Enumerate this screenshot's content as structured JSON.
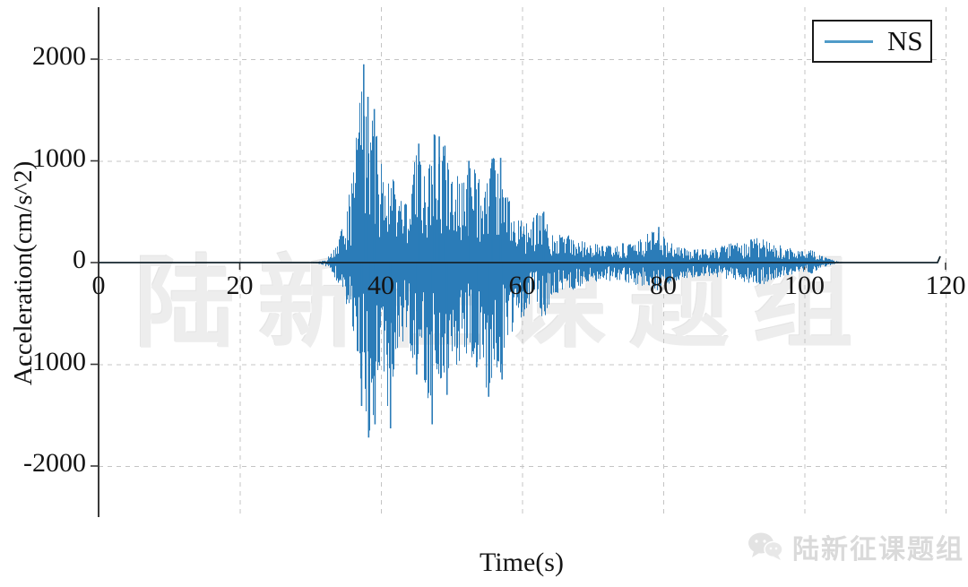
{
  "figure": {
    "watermark_center": "陆新征课题组",
    "watermark_badge": "陆新征课题组"
  },
  "chart_data": {
    "type": "line",
    "title": "",
    "xlabel": "Time(s)",
    "ylabel": "Acceleration(cm/s^2)",
    "series_name": "NS",
    "legend_position": "upper right",
    "grid": "dashed",
    "xlim": [
      0,
      120
    ],
    "ylim": [
      -2500,
      2500
    ],
    "xticks": [
      0,
      20,
      40,
      60,
      80,
      100,
      120
    ],
    "yticks": [
      2000,
      1000,
      0,
      -1000,
      -2000
    ],
    "line_color": "#2b7cb8",
    "legend_line_color": "#4f9bc8",
    "baseline_color": "#16262e",
    "grid_color": "#c4c4c4",
    "spine_color": "#3a3a3a",
    "signal_start_s": 31,
    "signal_end_s": 105,
    "record_end_s": 119.4,
    "peak_acceleration": 1950,
    "min_acceleration": -1720,
    "envelope_t_up_dn": [
      [
        0,
        2,
        -2
      ],
      [
        28,
        2,
        -2
      ],
      [
        30,
        5,
        -5
      ],
      [
        31,
        10,
        -10
      ],
      [
        32,
        30,
        -30
      ],
      [
        33,
        110,
        -100
      ],
      [
        34,
        240,
        -220
      ],
      [
        35,
        550,
        -430
      ],
      [
        36,
        900,
        -700
      ],
      [
        37,
        1700,
        -1300
      ],
      [
        37.5,
        1950,
        -1410
      ],
      [
        38,
        1500,
        -1720
      ],
      [
        39,
        1510,
        -1590
      ],
      [
        40,
        1000,
        -1000
      ],
      [
        41,
        900,
        -1630
      ],
      [
        42,
        800,
        -900
      ],
      [
        43,
        560,
        -800
      ],
      [
        44,
        620,
        -850
      ],
      [
        45,
        1170,
        -1100
      ],
      [
        46,
        1000,
        -1200
      ],
      [
        47,
        1100,
        -1590
      ],
      [
        47.5,
        1260,
        -1300
      ],
      [
        48,
        1240,
        -1200
      ],
      [
        49,
        1150,
        -1150
      ],
      [
        50,
        900,
        -950
      ],
      [
        51,
        850,
        -1050
      ],
      [
        52,
        1000,
        -900
      ],
      [
        53,
        950,
        -1030
      ],
      [
        54,
        800,
        -950
      ],
      [
        55,
        1020,
        -1320
      ],
      [
        56,
        1030,
        -1100
      ],
      [
        57,
        800,
        -1150
      ],
      [
        58,
        650,
        -800
      ],
      [
        59,
        500,
        -600
      ],
      [
        60,
        450,
        -550
      ],
      [
        61,
        350,
        -450
      ],
      [
        62,
        510,
        -400
      ],
      [
        63,
        500,
        -600
      ],
      [
        64,
        300,
        -350
      ],
      [
        65,
        280,
        -300
      ],
      [
        66,
        300,
        -250
      ],
      [
        67,
        250,
        -280
      ],
      [
        68,
        220,
        -250
      ],
      [
        69,
        200,
        -220
      ],
      [
        70,
        180,
        -200
      ],
      [
        71,
        200,
        -180
      ],
      [
        72,
        170,
        -190
      ],
      [
        73,
        160,
        -170
      ],
      [
        74,
        200,
        -180
      ],
      [
        75,
        180,
        -200
      ],
      [
        76,
        200,
        -220
      ],
      [
        77,
        250,
        -230
      ],
      [
        78,
        300,
        -250
      ],
      [
        79,
        350,
        -280
      ],
      [
        80,
        280,
        -250
      ],
      [
        81,
        200,
        -200
      ],
      [
        82,
        160,
        -180
      ],
      [
        83,
        150,
        -150
      ],
      [
        84,
        140,
        -160
      ],
      [
        85,
        130,
        -140
      ],
      [
        86,
        140,
        -130
      ],
      [
        87,
        150,
        -140
      ],
      [
        88,
        160,
        -150
      ],
      [
        89,
        180,
        -160
      ],
      [
        90,
        200,
        -170
      ],
      [
        91,
        180,
        -190
      ],
      [
        92,
        220,
        -200
      ],
      [
        93,
        250,
        -230
      ],
      [
        94,
        240,
        -220
      ],
      [
        95,
        200,
        -180
      ],
      [
        96,
        180,
        -160
      ],
      [
        97,
        170,
        -150
      ],
      [
        98,
        140,
        -130
      ],
      [
        99,
        120,
        -110
      ],
      [
        100,
        110,
        -100
      ],
      [
        101,
        130,
        -110
      ],
      [
        102,
        80,
        -70
      ],
      [
        103,
        50,
        -40
      ],
      [
        104,
        25,
        -20
      ],
      [
        105,
        8,
        -6
      ],
      [
        106,
        2,
        -2
      ],
      [
        119.4,
        2,
        -2
      ]
    ],
    "peaks_positive": [
      [
        37.5,
        1950
      ],
      [
        38.1,
        1630
      ],
      [
        39.0,
        1510
      ],
      [
        45.3,
        1170
      ],
      [
        47.5,
        1260
      ],
      [
        48.2,
        1240
      ],
      [
        49.0,
        1150
      ],
      [
        52.4,
        1000
      ],
      [
        55.7,
        1020
      ],
      [
        56.9,
        1030
      ],
      [
        63.0,
        500
      ],
      [
        79.3,
        350
      ]
    ],
    "peaks_negative": [
      [
        37.2,
        -1410
      ],
      [
        38.2,
        -1720
      ],
      [
        39.1,
        -1590
      ],
      [
        41.3,
        -1630
      ],
      [
        45.0,
        -1100
      ],
      [
        47.2,
        -1590
      ],
      [
        49.3,
        -1300
      ],
      [
        53.5,
        -1030
      ],
      [
        55.2,
        -1320
      ],
      [
        57.1,
        -1150
      ]
    ]
  }
}
